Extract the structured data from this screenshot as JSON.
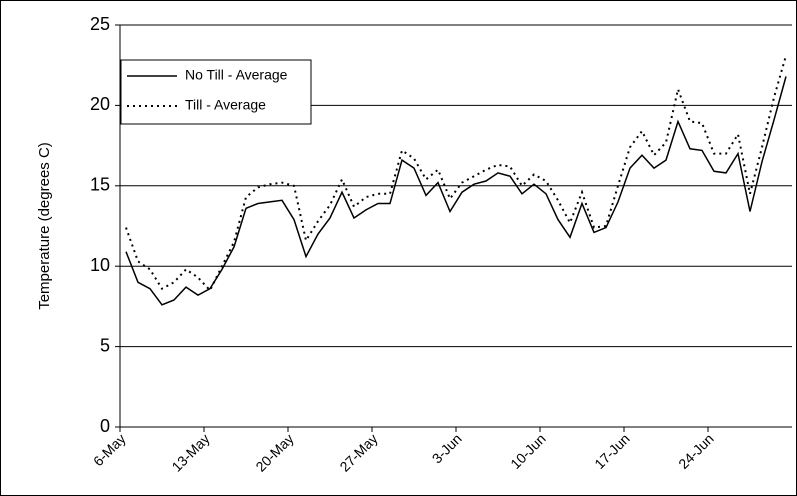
{
  "chart_data": {
    "type": "line",
    "y_label": "Temperature (degrees C)",
    "categories": [
      "6-May",
      null,
      null,
      null,
      null,
      null,
      null,
      "13-May",
      null,
      null,
      null,
      null,
      null,
      null,
      "20-May",
      null,
      null,
      null,
      null,
      null,
      null,
      "27-May",
      null,
      null,
      null,
      null,
      null,
      null,
      "3-Jun",
      null,
      null,
      null,
      null,
      null,
      null,
      "10-Jun",
      null,
      null,
      null,
      null,
      null,
      null,
      "17-Jun",
      null,
      null,
      null,
      null,
      null,
      null,
      "24-Jun",
      null,
      null,
      null,
      null,
      null,
      null
    ],
    "series": [
      {
        "name": "No Till - Average",
        "color": "#000000",
        "style": "solid",
        "values": [
          10.9,
          9.0,
          8.6,
          7.6,
          7.9,
          8.7,
          8.2,
          8.6,
          9.8,
          11.2,
          13.6,
          13.9,
          14.0,
          14.1,
          12.9,
          10.6,
          12.0,
          13.0,
          14.6,
          13.0,
          13.5,
          13.9,
          13.9,
          16.6,
          16.1,
          14.4,
          15.2,
          13.4,
          14.6,
          15.1,
          15.3,
          15.8,
          15.6,
          14.5,
          15.1,
          14.5,
          12.9,
          11.8,
          13.9,
          12.1,
          12.4,
          14.0,
          16.1,
          16.9,
          16.1,
          16.6,
          19.0,
          17.3,
          17.2,
          15.9,
          15.8,
          17.0,
          13.4,
          16.5,
          19.1,
          21.8
        ]
      },
      {
        "name": "Till - Average",
        "color": "#000000",
        "style": "dotted",
        "values": [
          12.4,
          10.3,
          9.8,
          8.6,
          9.0,
          9.8,
          9.3,
          8.5,
          10.0,
          11.5,
          14.3,
          14.9,
          15.1,
          15.2,
          15.0,
          11.6,
          12.8,
          13.8,
          15.4,
          13.7,
          14.3,
          14.5,
          14.5,
          17.2,
          16.7,
          15.4,
          16.0,
          14.2,
          15.2,
          15.6,
          16.0,
          16.3,
          16.2,
          15.0,
          15.7,
          15.3,
          14.1,
          12.7,
          14.6,
          12.4,
          12.5,
          15.0,
          17.4,
          18.4,
          16.9,
          17.7,
          21.0,
          19.0,
          18.9,
          17.0,
          17.0,
          18.2,
          14.5,
          17.4,
          20.5,
          23.1
        ]
      }
    ],
    "ylim": [
      0,
      25
    ],
    "yticks": [
      0,
      5,
      10,
      15,
      20,
      25
    ],
    "grid": true,
    "legend": "upper left"
  }
}
